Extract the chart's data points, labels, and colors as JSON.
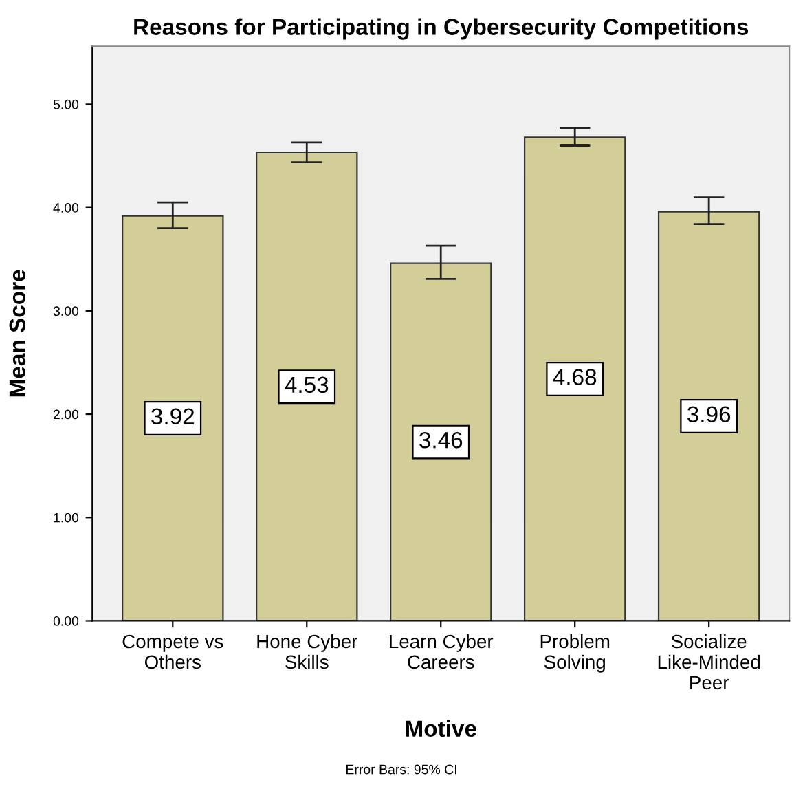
{
  "chart_data": {
    "type": "bar",
    "title": "Reasons for Participating in Cybersecurity Competitions",
    "xlabel": "Motive",
    "ylabel": "Mean Score",
    "categories": [
      "Compete vs\nOthers",
      "Hone Cyber\nSkills",
      "Learn Cyber\nCareers",
      "Problem\nSolving",
      "Socialize\nLike-Minded\nPeer"
    ],
    "values": [
      3.92,
      4.53,
      3.46,
      4.68,
      3.96
    ],
    "errors": [
      [
        3.8,
        4.05
      ],
      [
        4.44,
        4.63
      ],
      [
        3.31,
        3.63
      ],
      [
        4.6,
        4.77
      ],
      [
        3.84,
        4.1
      ]
    ],
    "color": "#d3ce97",
    "data_labels": true,
    "ylim": [
      0,
      5.56
    ],
    "yticks": [
      {
        "value": 0,
        "label": "0.00"
      },
      {
        "value": 1,
        "label": "1.00"
      },
      {
        "value": 2,
        "label": "2.00"
      },
      {
        "value": 3,
        "label": "3.00"
      },
      {
        "value": 4,
        "label": "4.00"
      },
      {
        "value": 5,
        "label": "5.00"
      }
    ],
    "grid": false,
    "annotations": [
      "Error Bars: 95% CI"
    ]
  }
}
